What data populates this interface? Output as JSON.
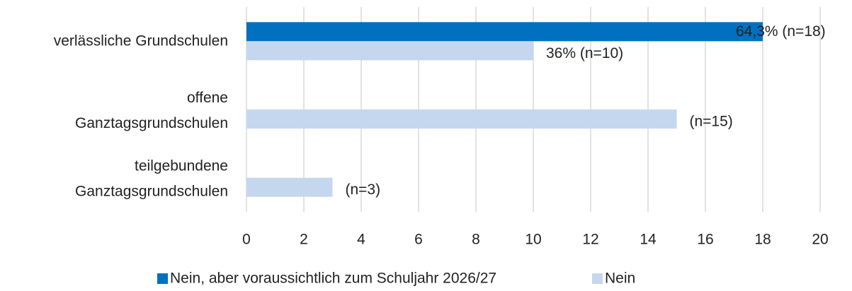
{
  "chart_data": {
    "type": "hbar",
    "categories": [
      [
        "verlässliche Grundschulen"
      ],
      [
        "offene",
        "Ganztagsgrundschulen"
      ],
      [
        "teilgebundene",
        "Ganztagsgrundschulen"
      ]
    ],
    "series": [
      {
        "name": "Nein, aber voraussichtlich zum Schuljahr 2026/27",
        "color": "#0070c0",
        "values": [
          18,
          null,
          null
        ],
        "value_labels": [
          "64,3% (n=18)",
          null,
          null
        ]
      },
      {
        "name": "Nein",
        "color": "#c5d7ef",
        "values": [
          10,
          15,
          3
        ],
        "value_labels": [
          "36% (n=10)",
          "(n=15)",
          "(n=3)"
        ]
      }
    ],
    "xlim": [
      0,
      20
    ],
    "xticks": [
      0,
      2,
      4,
      6,
      8,
      10,
      12,
      14,
      16,
      18,
      20
    ],
    "grid": true,
    "legend": "bottom"
  }
}
